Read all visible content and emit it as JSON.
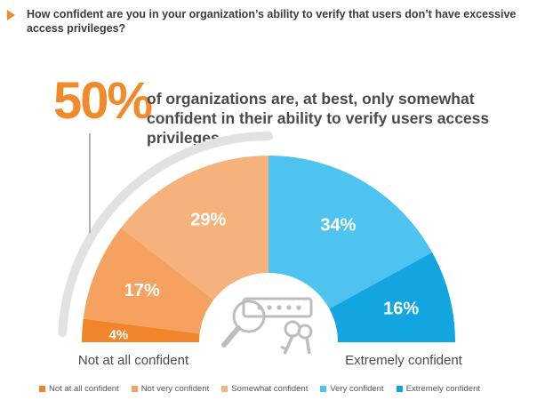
{
  "question": "How confident are you in your organization’s ability to verify that users don’t have excessive access privileges?",
  "highlight": {
    "number": "50%",
    "text": "of organizations are, at best, only somewhat confident in their ability to verify users access privileges."
  },
  "chart_data": {
    "type": "pie",
    "subtype": "semi-donut",
    "title": "",
    "categories": [
      "Not at all confident",
      "Not very confident",
      "Somewhat confident",
      "Very confident",
      "Extremely confident"
    ],
    "values": [
      4,
      17,
      29,
      34,
      16
    ],
    "labels": [
      "4%",
      "17%",
      "29%",
      "34%",
      "16%"
    ],
    "colors": [
      "#f0852c",
      "#f5a260",
      "#f6b27c",
      "#4fc3ef",
      "#12a5df"
    ],
    "left_end_label": "Not at all confident",
    "right_end_label": "Extremely confident",
    "legend_position": "bottom"
  },
  "colors": {
    "accent": "#f08a2b",
    "arc_gray": "#e2e2e2"
  },
  "icons": [
    "magnifier-icon",
    "password-field-icon",
    "keys-icon"
  ]
}
